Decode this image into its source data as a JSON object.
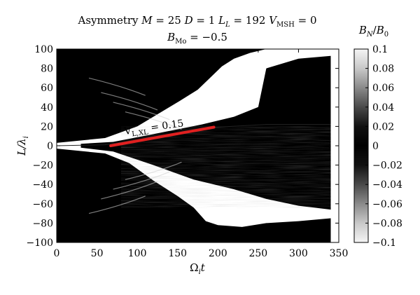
{
  "chart_data": {
    "type": "heatmap",
    "title_line1": {
      "word": "Asymmetry",
      "params": [
        {
          "sym": "M",
          "sub": "",
          "val": "25"
        },
        {
          "sym": "D",
          "sub": "",
          "val": "1"
        },
        {
          "sym": "L",
          "sub": "L",
          "val": "192"
        },
        {
          "sym": "V",
          "sub": "MSH",
          "val": "0"
        }
      ]
    },
    "title_line2": {
      "sym": "B",
      "sub": "Mo",
      "val": "−0.5"
    },
    "xlabel": {
      "sym": "Ω",
      "sub": "i",
      "rest": "t"
    },
    "ylabel": {
      "sym": "L/λ",
      "sub": "i"
    },
    "xlim": [
      0,
      350
    ],
    "ylim": [
      -100,
      100
    ],
    "x_ticks": [
      "0",
      "50",
      "100",
      "150",
      "200",
      "250",
      "300",
      "350"
    ],
    "y_ticks": [
      "−100",
      "−80",
      "−60",
      "−40",
      "−20",
      "0",
      "20",
      "40",
      "60",
      "80",
      "100"
    ],
    "data_extent_x": [
      0,
      340
    ],
    "colorbar": {
      "label": {
        "sym": "B",
        "sub": "N",
        "rest": "/",
        "sym2": "B",
        "sub2": "0"
      },
      "range": [
        -0.1,
        0.1
      ],
      "ticks": [
        "0.1",
        "0.08",
        "0.06",
        "0.04",
        "0.02",
        "0",
        "−0.02",
        "−0.04",
        "−0.06",
        "−0.08",
        "−0.1"
      ],
      "colormap": [
        "#f5f5f5",
        "#c8c8c8",
        "#8a8a8a",
        "#4a4a4a",
        "#111111",
        "#000000",
        "#111111",
        "#4a4a4a",
        "#8a8a8a",
        "#c8c8c8",
        "#f5f5f5"
      ]
    },
    "annotation": {
      "text_sym": "V",
      "text_sub": "L,XL",
      "text_rest": " = 0.15",
      "line_x": [
        67,
        195
      ],
      "line_y": [
        0,
        19.2
      ],
      "line_color": "#e02020"
    },
    "colors": {
      "background_field": "#000000",
      "jet_region": "#ffffff",
      "texture": "#bdbdbd"
    }
  }
}
